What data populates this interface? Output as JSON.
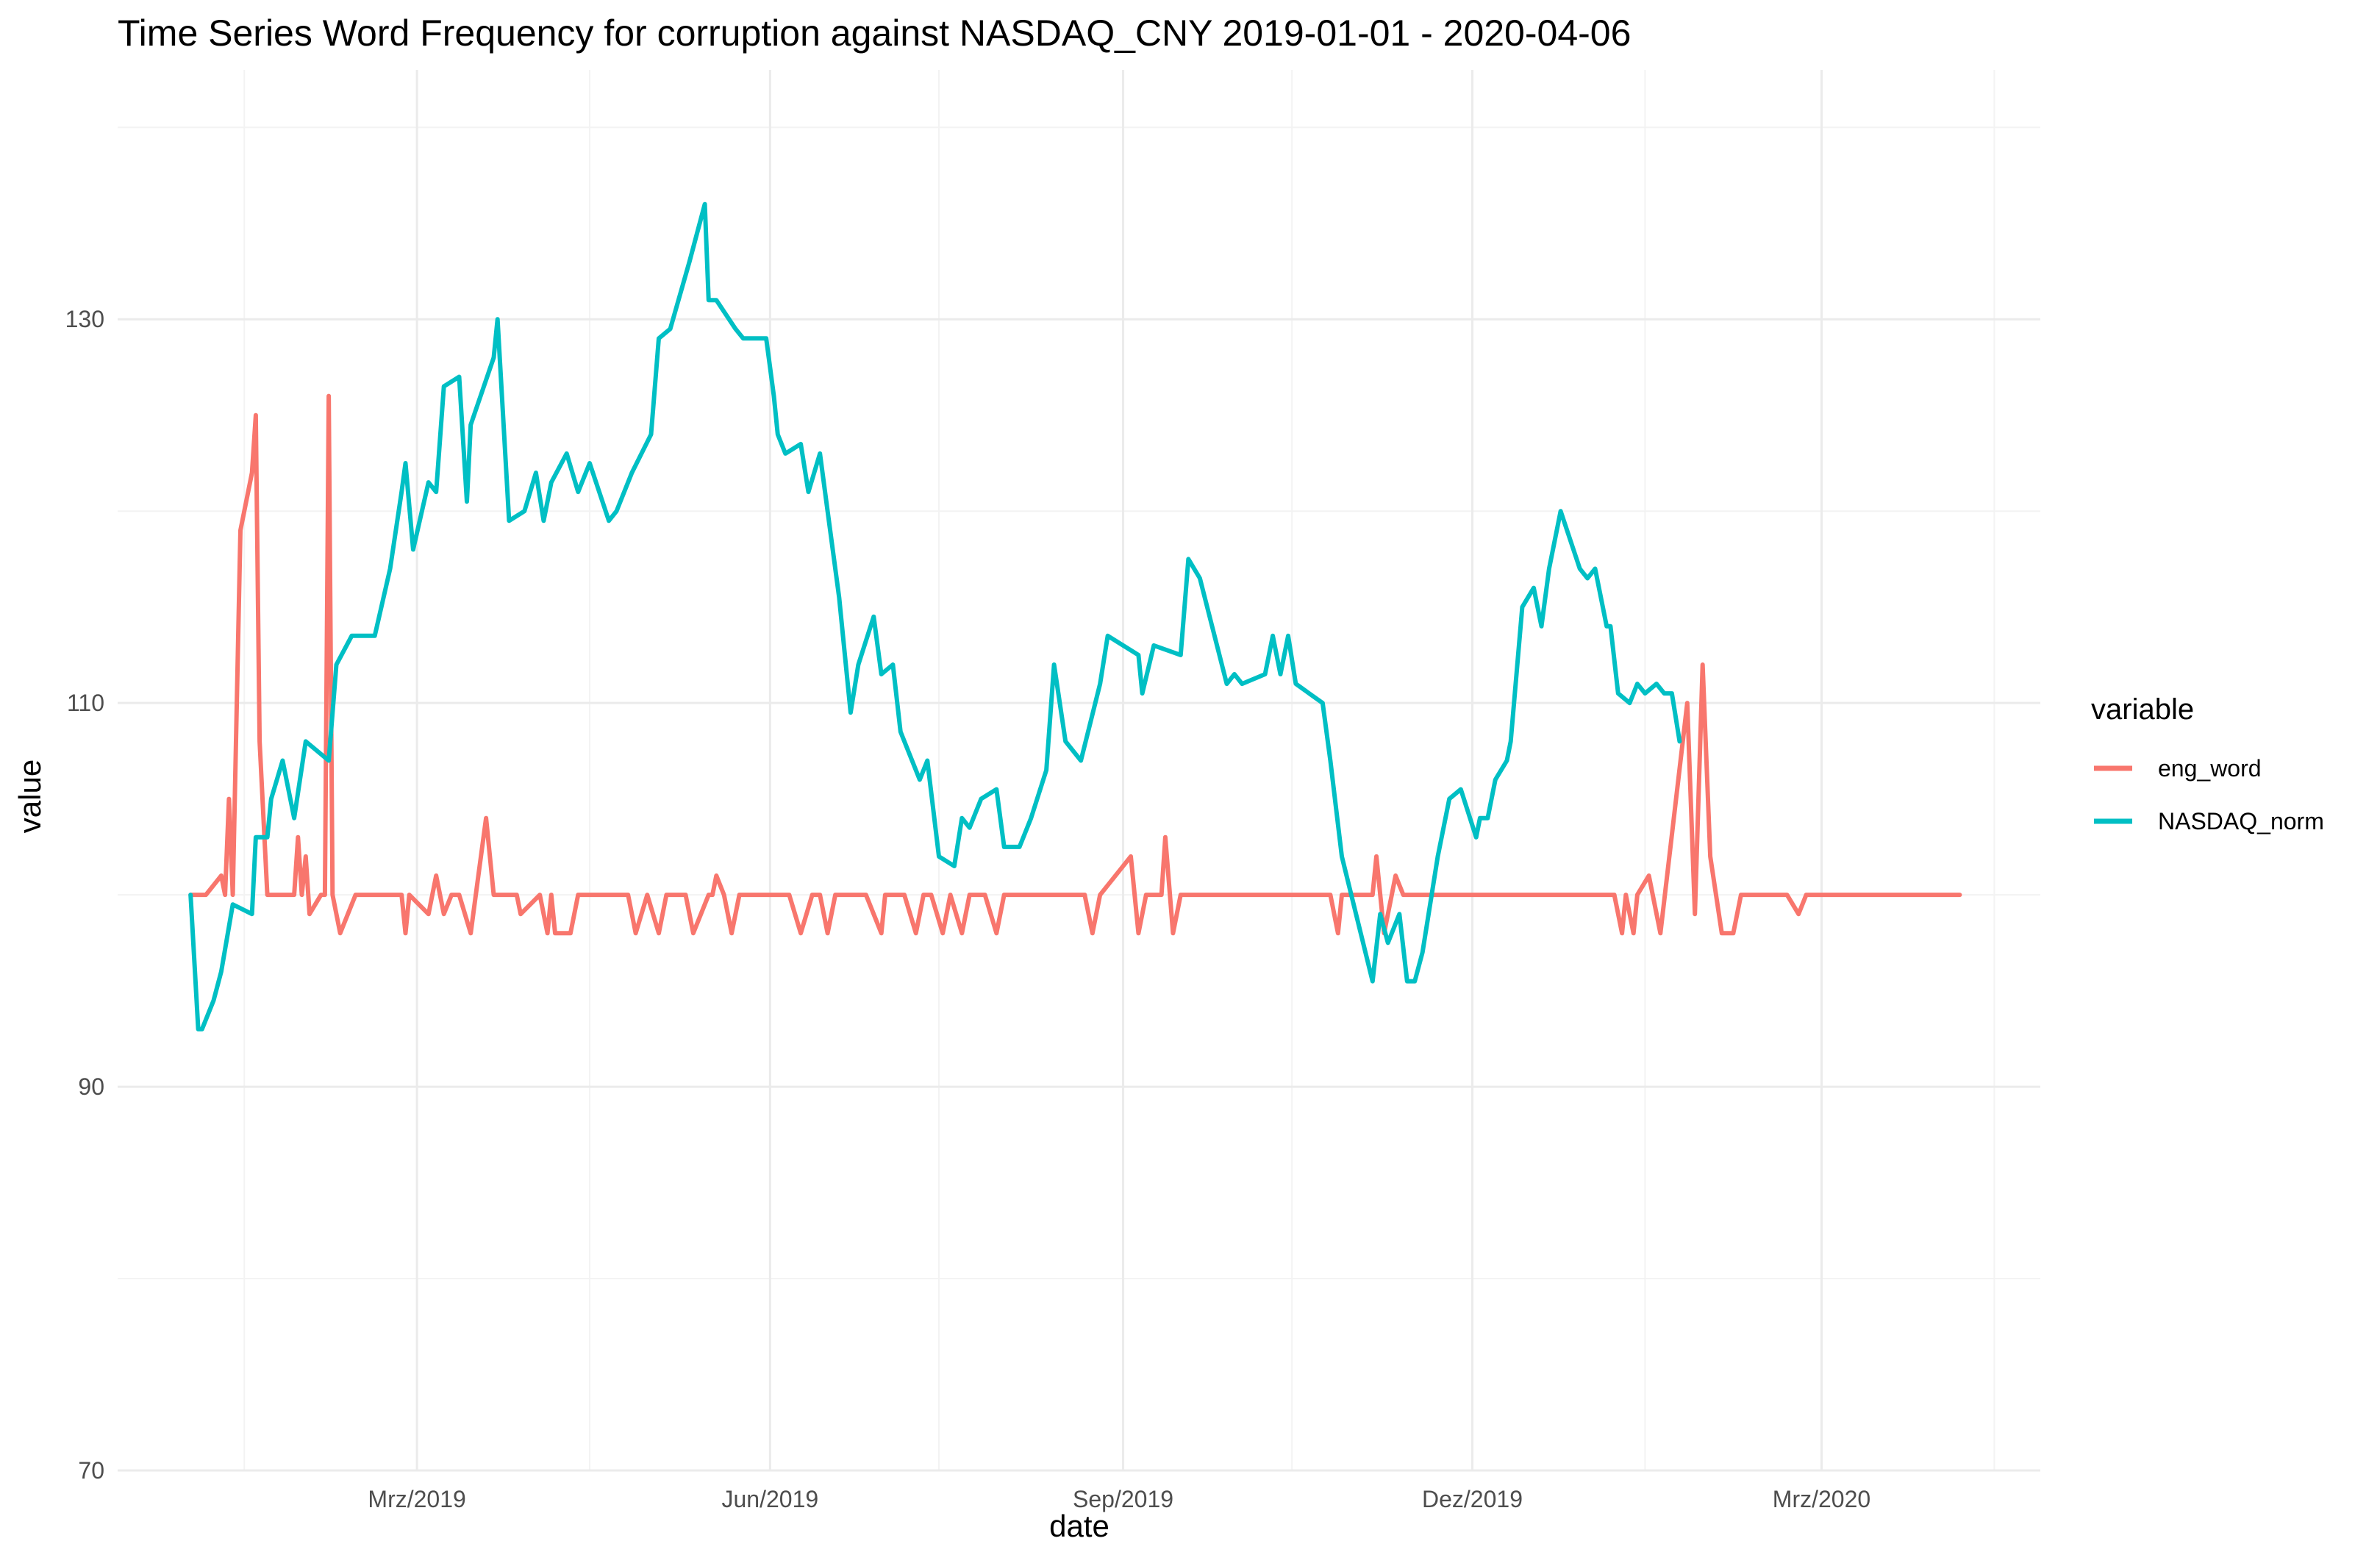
{
  "chart_data": {
    "type": "line",
    "title": "Time Series Word Frequency for corruption against NASDAQ_CNY 2019-01-01 - 2020-04-06",
    "xlabel": "date",
    "ylabel": "value",
    "xlim": [
      "2018-12-13",
      "2020-04-27"
    ],
    "ylim": [
      70,
      143
    ],
    "x_ticks": [
      {
        "date": "2019-03-01",
        "label": "Mrz/2019"
      },
      {
        "date": "2019-06-01",
        "label": "Jun/2019"
      },
      {
        "date": "2019-09-01",
        "label": "Sep/2019"
      },
      {
        "date": "2019-12-01",
        "label": "Dez/2019"
      },
      {
        "date": "2020-03-01",
        "label": "Mrz/2020"
      }
    ],
    "x_minor_ticks": [
      "2019-01-15",
      "2019-04-15",
      "2019-07-15",
      "2019-10-15",
      "2020-01-15",
      "2020-04-15"
    ],
    "y_ticks": [
      70,
      90,
      110,
      130
    ],
    "y_minor_ticks": [
      80,
      100,
      120,
      140
    ],
    "grid": true,
    "legend": {
      "title": "variable",
      "position": "right"
    },
    "series": [
      {
        "name": "eng_word",
        "color": "#F8766D",
        "points": [
          [
            "2019-01-01",
            100
          ],
          [
            "2019-01-05",
            100
          ],
          [
            "2019-01-09",
            101
          ],
          [
            "2019-01-10",
            100
          ],
          [
            "2019-01-11",
            105
          ],
          [
            "2019-01-12",
            100
          ],
          [
            "2019-01-14",
            119
          ],
          [
            "2019-01-17",
            122
          ],
          [
            "2019-01-18",
            125
          ],
          [
            "2019-01-19",
            108
          ],
          [
            "2019-01-21",
            100
          ],
          [
            "2019-01-23",
            100
          ],
          [
            "2019-01-24",
            100
          ],
          [
            "2019-01-28",
            100
          ],
          [
            "2019-01-29",
            103
          ],
          [
            "2019-01-30",
            100
          ],
          [
            "2019-01-31",
            102
          ],
          [
            "2019-02-01",
            99
          ],
          [
            "2019-02-04",
            100
          ],
          [
            "2019-02-05",
            100
          ],
          [
            "2019-02-06",
            126
          ],
          [
            "2019-02-07",
            100
          ],
          [
            "2019-02-09",
            98
          ],
          [
            "2019-02-13",
            100
          ],
          [
            "2019-02-25",
            100
          ],
          [
            "2019-02-26",
            98
          ],
          [
            "2019-02-27",
            100
          ],
          [
            "2019-03-04",
            99
          ],
          [
            "2019-03-06",
            101
          ],
          [
            "2019-03-08",
            99
          ],
          [
            "2019-03-10",
            100
          ],
          [
            "2019-03-12",
            100
          ],
          [
            "2019-03-15",
            98
          ],
          [
            "2019-03-17",
            101
          ],
          [
            "2019-03-19",
            104
          ],
          [
            "2019-03-21",
            100
          ],
          [
            "2019-03-27",
            100
          ],
          [
            "2019-03-28",
            99
          ],
          [
            "2019-04-02",
            100
          ],
          [
            "2019-04-04",
            98
          ],
          [
            "2019-04-05",
            100
          ],
          [
            "2019-04-06",
            98
          ],
          [
            "2019-04-10",
            98
          ],
          [
            "2019-04-12",
            100
          ],
          [
            "2019-04-25",
            100
          ],
          [
            "2019-04-27",
            98
          ],
          [
            "2019-04-30",
            100
          ],
          [
            "2019-05-03",
            98
          ],
          [
            "2019-05-05",
            100
          ],
          [
            "2019-05-10",
            100
          ],
          [
            "2019-05-12",
            98
          ],
          [
            "2019-05-16",
            100
          ],
          [
            "2019-05-17",
            100
          ],
          [
            "2019-05-18",
            101
          ],
          [
            "2019-05-20",
            100
          ],
          [
            "2019-05-22",
            98
          ],
          [
            "2019-05-24",
            100
          ],
          [
            "2019-06-06",
            100
          ],
          [
            "2019-06-09",
            98
          ],
          [
            "2019-06-12",
            100
          ],
          [
            "2019-06-14",
            100
          ],
          [
            "2019-06-16",
            98
          ],
          [
            "2019-06-18",
            100
          ],
          [
            "2019-06-26",
            100
          ],
          [
            "2019-06-30",
            98
          ],
          [
            "2019-07-01",
            100
          ],
          [
            "2019-07-03",
            100
          ],
          [
            "2019-07-06",
            100
          ],
          [
            "2019-07-09",
            98
          ],
          [
            "2019-07-11",
            100
          ],
          [
            "2019-07-13",
            100
          ],
          [
            "2019-07-16",
            98
          ],
          [
            "2019-07-18",
            100
          ],
          [
            "2019-07-21",
            98
          ],
          [
            "2019-07-23",
            100
          ],
          [
            "2019-07-27",
            100
          ],
          [
            "2019-07-30",
            98
          ],
          [
            "2019-08-01",
            100
          ],
          [
            "2019-08-22",
            100
          ],
          [
            "2019-08-24",
            98
          ],
          [
            "2019-08-26",
            100
          ],
          [
            "2019-09-03",
            102
          ],
          [
            "2019-09-05",
            98
          ],
          [
            "2019-09-07",
            100
          ],
          [
            "2019-09-11",
            100
          ],
          [
            "2019-09-12",
            103
          ],
          [
            "2019-09-14",
            98
          ],
          [
            "2019-09-16",
            100
          ],
          [
            "2019-10-25",
            100
          ],
          [
            "2019-10-27",
            98
          ],
          [
            "2019-10-28",
            100
          ],
          [
            "2019-11-05",
            100
          ],
          [
            "2019-11-06",
            102
          ],
          [
            "2019-11-08",
            98
          ],
          [
            "2019-11-11",
            101
          ],
          [
            "2019-11-13",
            100
          ],
          [
            "2020-01-07",
            100
          ],
          [
            "2020-01-09",
            98
          ],
          [
            "2020-01-10",
            100
          ],
          [
            "2020-01-12",
            98
          ],
          [
            "2020-01-13",
            100
          ],
          [
            "2020-01-16",
            101
          ],
          [
            "2020-01-19",
            98
          ],
          [
            "2020-01-26",
            110
          ],
          [
            "2020-01-28",
            99
          ],
          [
            "2020-01-30",
            112
          ],
          [
            "2020-02-01",
            102
          ],
          [
            "2020-02-04",
            98
          ],
          [
            "2020-02-07",
            98
          ],
          [
            "2020-02-09",
            100
          ],
          [
            "2020-02-21",
            100
          ],
          [
            "2020-02-24",
            99
          ],
          [
            "2020-02-26",
            100
          ],
          [
            "2020-04-06",
            100
          ]
        ]
      },
      {
        "name": "NASDAQ_norm",
        "color": "#00BFC4",
        "points": [
          [
            "2019-01-01",
            100
          ],
          [
            "2019-01-03",
            93
          ],
          [
            "2019-01-04",
            93
          ],
          [
            "2019-01-07",
            94.5
          ],
          [
            "2019-01-09",
            96
          ],
          [
            "2019-01-12",
            99.5
          ],
          [
            "2019-01-17",
            99
          ],
          [
            "2019-01-18",
            103
          ],
          [
            "2019-01-21",
            103
          ],
          [
            "2019-01-22",
            105
          ],
          [
            "2019-01-25",
            107
          ],
          [
            "2019-01-28",
            104
          ],
          [
            "2019-01-31",
            108
          ],
          [
            "2019-02-06",
            107
          ],
          [
            "2019-02-08",
            112
          ],
          [
            "2019-02-12",
            113.5
          ],
          [
            "2019-02-18",
            113.5
          ],
          [
            "2019-02-22",
            117
          ],
          [
            "2019-02-25",
            121
          ],
          [
            "2019-02-26",
            122.5
          ],
          [
            "2019-02-28",
            118
          ],
          [
            "2019-03-04",
            121.5
          ],
          [
            "2019-03-06",
            121
          ],
          [
            "2019-03-08",
            126.5
          ],
          [
            "2019-03-12",
            127
          ],
          [
            "2019-03-14",
            120.5
          ],
          [
            "2019-03-15",
            124.5
          ],
          [
            "2019-03-21",
            128
          ],
          [
            "2019-03-22",
            130
          ],
          [
            "2019-03-25",
            119.5
          ],
          [
            "2019-03-29",
            120
          ],
          [
            "2019-04-01",
            122
          ],
          [
            "2019-04-03",
            119.5
          ],
          [
            "2019-04-05",
            121.5
          ],
          [
            "2019-04-09",
            123
          ],
          [
            "2019-04-12",
            121
          ],
          [
            "2019-04-15",
            122.5
          ],
          [
            "2019-04-20",
            119.5
          ],
          [
            "2019-04-22",
            120
          ],
          [
            "2019-04-26",
            122
          ],
          [
            "2019-05-01",
            124
          ],
          [
            "2019-05-03",
            129
          ],
          [
            "2019-05-06",
            129.5
          ],
          [
            "2019-05-11",
            133
          ],
          [
            "2019-05-15",
            136
          ],
          [
            "2019-05-16",
            131
          ],
          [
            "2019-05-18",
            131
          ],
          [
            "2019-05-23",
            129.5
          ],
          [
            "2019-05-25",
            129
          ],
          [
            "2019-05-31",
            129
          ],
          [
            "2019-06-02",
            126
          ],
          [
            "2019-06-03",
            124
          ],
          [
            "2019-06-05",
            123
          ],
          [
            "2019-06-09",
            123.5
          ],
          [
            "2019-06-11",
            121
          ],
          [
            "2019-06-14",
            123
          ],
          [
            "2019-06-16",
            120
          ],
          [
            "2019-06-19",
            115.5
          ],
          [
            "2019-06-22",
            109.5
          ],
          [
            "2019-06-24",
            112
          ],
          [
            "2019-06-28",
            114.5
          ],
          [
            "2019-06-30",
            111.5
          ],
          [
            "2019-07-03",
            112
          ],
          [
            "2019-07-05",
            108.5
          ],
          [
            "2019-07-10",
            106
          ],
          [
            "2019-07-12",
            107
          ],
          [
            "2019-07-15",
            102
          ],
          [
            "2019-07-19",
            101.5
          ],
          [
            "2019-07-21",
            104
          ],
          [
            "2019-07-23",
            103.5
          ],
          [
            "2019-07-26",
            105
          ],
          [
            "2019-07-30",
            105.5
          ],
          [
            "2019-08-01",
            102.5
          ],
          [
            "2019-08-05",
            102.5
          ],
          [
            "2019-08-08",
            104
          ],
          [
            "2019-08-12",
            106.5
          ],
          [
            "2019-08-14",
            112
          ],
          [
            "2019-08-17",
            108
          ],
          [
            "2019-08-21",
            107
          ],
          [
            "2019-08-26",
            111
          ],
          [
            "2019-08-28",
            113.5
          ],
          [
            "2019-09-05",
            112.5
          ],
          [
            "2019-09-06",
            110.5
          ],
          [
            "2019-09-09",
            113
          ],
          [
            "2019-09-16",
            112.5
          ],
          [
            "2019-09-18",
            117.5
          ],
          [
            "2019-09-21",
            116.5
          ],
          [
            "2019-09-28",
            111
          ],
          [
            "2019-09-30",
            111.5
          ],
          [
            "2019-10-02",
            111
          ],
          [
            "2019-10-08",
            111.5
          ],
          [
            "2019-10-10",
            113.5
          ],
          [
            "2019-10-12",
            111.5
          ],
          [
            "2019-10-14",
            113.5
          ],
          [
            "2019-10-16",
            111
          ],
          [
            "2019-10-23",
            110
          ],
          [
            "2019-10-25",
            107
          ],
          [
            "2019-10-28",
            102
          ],
          [
            "2019-11-05",
            95.5
          ],
          [
            "2019-11-07",
            99
          ],
          [
            "2019-11-09",
            97.5
          ],
          [
            "2019-11-12",
            99
          ],
          [
            "2019-11-14",
            95.5
          ],
          [
            "2019-11-16",
            95.5
          ],
          [
            "2019-11-18",
            97
          ],
          [
            "2019-11-22",
            102
          ],
          [
            "2019-11-25",
            105
          ],
          [
            "2019-11-28",
            105.5
          ],
          [
            "2019-12-02",
            103
          ],
          [
            "2019-12-03",
            104
          ],
          [
            "2019-12-05",
            104
          ],
          [
            "2019-12-07",
            106
          ],
          [
            "2019-12-10",
            107
          ],
          [
            "2019-12-11",
            108
          ],
          [
            "2019-12-14",
            115
          ],
          [
            "2019-12-17",
            116
          ],
          [
            "2019-12-19",
            114
          ],
          [
            "2019-12-21",
            117
          ],
          [
            "2019-12-24",
            120
          ],
          [
            "2019-12-29",
            117
          ],
          [
            "2019-12-31",
            116.5
          ],
          [
            "2020-01-02",
            117
          ],
          [
            "2020-01-05",
            114
          ],
          [
            "2020-01-06",
            114
          ],
          [
            "2020-01-08",
            110.5
          ],
          [
            "2020-01-11",
            110
          ],
          [
            "2020-01-13",
            111
          ],
          [
            "2020-01-15",
            110.5
          ],
          [
            "2020-01-18",
            111
          ],
          [
            "2020-01-20",
            110.5
          ],
          [
            "2020-01-22",
            110.5
          ],
          [
            "2020-01-24",
            108
          ]
        ]
      }
    ]
  }
}
